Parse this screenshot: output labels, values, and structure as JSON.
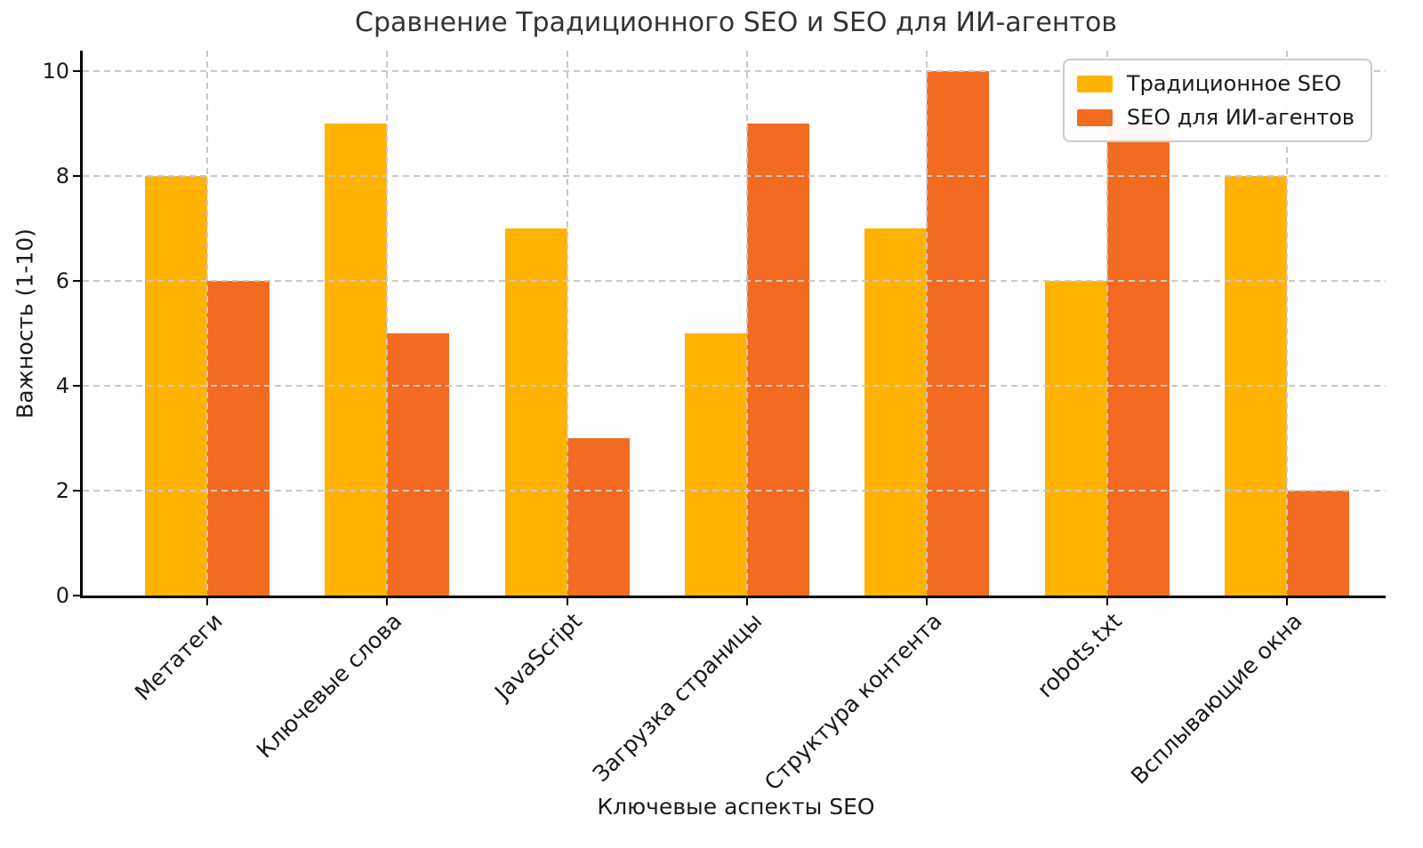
{
  "chart_data": {
    "type": "bar",
    "title": "Сравнение Традиционного SEO и SEO для ИИ-агентов",
    "xlabel": "Ключевые аспекты SEO",
    "ylabel": "Важность (1-10)",
    "categories": [
      "Метатеги",
      "Ключевые слова",
      "JavaScript",
      "Загрузка страницы",
      "Структура контента",
      "robots.txt",
      "Всплывающие окна"
    ],
    "series": [
      {
        "name": "Традиционное SEO",
        "color": "#FFB300",
        "values": [
          8,
          9,
          7,
          5,
          7,
          6,
          8
        ]
      },
      {
        "name": "SEO для ИИ-агентов",
        "color": "#F26B21",
        "values": [
          6,
          5,
          3,
          9,
          10,
          9,
          2
        ]
      }
    ],
    "ylim": [
      0,
      10.5
    ],
    "yticks": [
      0,
      2,
      4,
      6,
      8,
      10
    ],
    "grid": true,
    "grid_style": "dashed",
    "grid_on_top": true,
    "legend_position": "upper right"
  },
  "colors": {
    "grid": "#c9c9c9",
    "spine": "#000000",
    "tick_text": "#1a1a1a",
    "title_text": "#333333",
    "legend_border": "#cccccc",
    "background": "#ffffff"
  }
}
